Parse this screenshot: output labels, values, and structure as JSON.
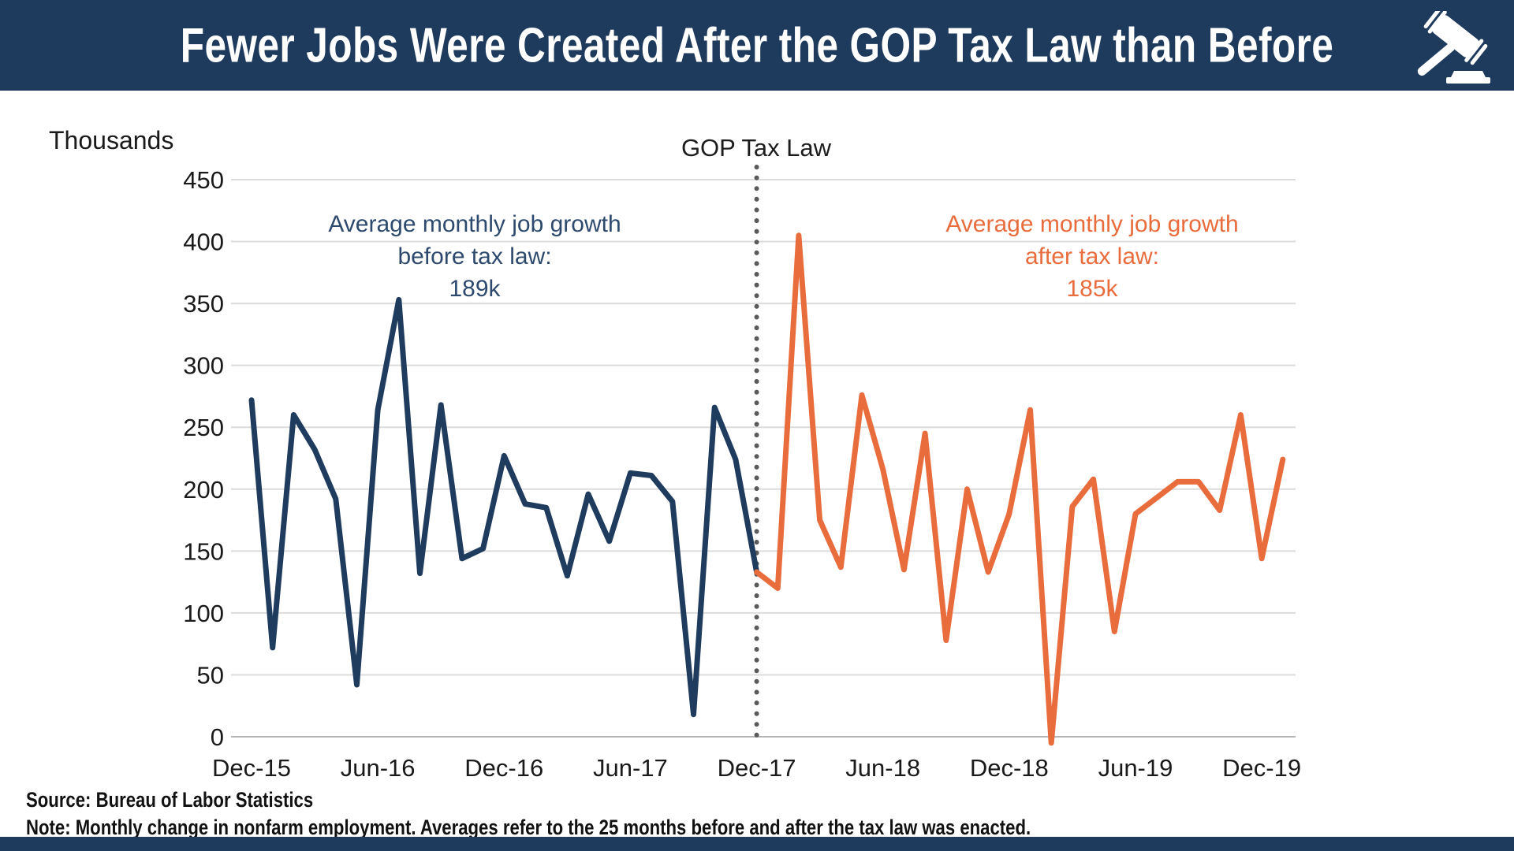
{
  "header": {
    "title": "Fewer Jobs Were Created After the GOP Tax Law than Before"
  },
  "labels": {
    "unit": "Thousands",
    "event": "GOP Tax Law"
  },
  "annotations": {
    "before": {
      "line1": "Average monthly job growth",
      "line2": "before tax law:",
      "line3": "189k"
    },
    "after": {
      "line1": "Average monthly job growth",
      "line2": "after tax law:",
      "line3": "185k"
    }
  },
  "footer": {
    "source": "Source: Bureau of Labor Statistics",
    "note": "Note: Monthly change in nonfarm employment. Averages refer to the 25 months before and after the tax law was enacted."
  },
  "colors": {
    "header_bg": "#1e3a5c",
    "before_line": "#1f3b5e",
    "after_line": "#e96c3d",
    "gridline": "#dcdcdc",
    "zero_line": "#b5b5b5",
    "dotted_line": "#5a5a5a",
    "axis_text": "#1a1a1a"
  },
  "chart_data": {
    "type": "line",
    "title": "Fewer Jobs Were Created After the GOP Tax Law than Before",
    "ylabel": "Thousands",
    "ylim": [
      0,
      450
    ],
    "yticks": [
      0,
      50,
      100,
      150,
      200,
      250,
      300,
      350,
      400,
      450
    ],
    "grid": true,
    "x_tick_labels": [
      "Dec-15",
      "Jun-16",
      "Dec-16",
      "Jun-17",
      "Dec-17",
      "Jun-18",
      "Dec-18",
      "Jun-19",
      "Dec-19"
    ],
    "x_tick_indices": [
      0,
      6,
      12,
      18,
      24,
      30,
      36,
      42,
      48
    ],
    "months": [
      "Dec-15",
      "Jan-16",
      "Feb-16",
      "Mar-16",
      "Apr-16",
      "May-16",
      "Jun-16",
      "Jul-16",
      "Aug-16",
      "Sep-16",
      "Oct-16",
      "Nov-16",
      "Dec-16",
      "Jan-17",
      "Feb-17",
      "Mar-17",
      "Apr-17",
      "May-17",
      "Jun-17",
      "Jul-17",
      "Aug-17",
      "Sep-17",
      "Oct-17",
      "Nov-17",
      "Dec-17",
      "Jan-18",
      "Feb-18",
      "Mar-18",
      "Apr-18",
      "May-18",
      "Jun-18",
      "Jul-18",
      "Aug-18",
      "Sep-18",
      "Oct-18",
      "Nov-18",
      "Dec-18",
      "Jan-19",
      "Feb-19",
      "Mar-19",
      "Apr-19",
      "May-19",
      "Jun-19",
      "Jul-19",
      "Aug-19",
      "Sep-19",
      "Oct-19",
      "Nov-19",
      "Dec-19",
      "Jan-20"
    ],
    "event_line": {
      "label": "GOP Tax Law",
      "month": "Dec-17",
      "index": 24
    },
    "series": [
      {
        "name": "Before tax law",
        "color": "#1f3b5e",
        "start_index": 0,
        "average_label": "189k",
        "values": [
          272,
          72,
          260,
          232,
          192,
          42,
          264,
          353,
          132,
          268,
          144,
          152,
          227,
          188,
          185,
          130,
          196,
          158,
          213,
          211,
          190,
          18,
          266,
          224,
          133
        ]
      },
      {
        "name": "After tax law",
        "color": "#e96c3d",
        "start_index": 24,
        "average_label": "185k",
        "values": [
          133,
          120,
          405,
          175,
          137,
          276,
          216,
          135,
          245,
          78,
          200,
          133,
          180,
          264,
          -5,
          186,
          208,
          85,
          180,
          193,
          206,
          206,
          183,
          260,
          144,
          224
        ]
      }
    ]
  }
}
